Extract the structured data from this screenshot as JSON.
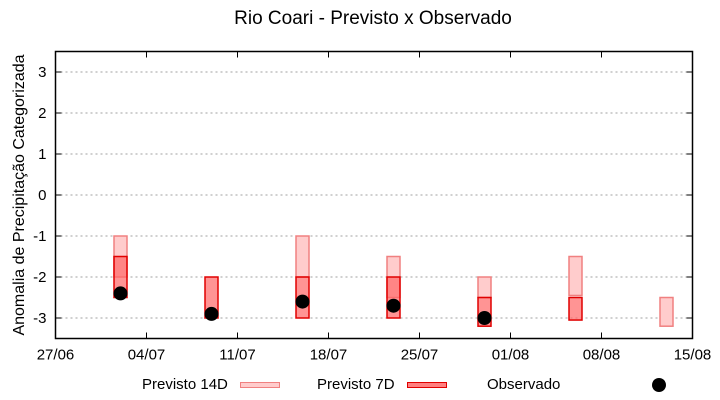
{
  "chart_data": {
    "type": "bar",
    "title": "Rio Coari - Previsto x Observado",
    "xlabel": "",
    "ylabel": "Anomalia de Precipitação Categorizada",
    "ylim": [
      -3.5,
      3.5
    ],
    "yticks": [
      3,
      2,
      1,
      0,
      -1,
      -2,
      -3
    ],
    "xticks": [
      "27/06",
      "04/07",
      "11/07",
      "18/07",
      "25/07",
      "01/08",
      "08/08",
      "15/08"
    ],
    "xrange_days": 49,
    "grid": true,
    "legend_position": "bottom",
    "colors": {
      "p14_fill": "#ffcccc",
      "p14_stroke": "#f08080",
      "p7_fill": "#ff6666",
      "p7_stroke": "#e00000",
      "obs": "#000000",
      "grid": "#a0a0a0"
    },
    "series": [
      {
        "name": "Previsto 14D",
        "type": "range-box",
        "points": [
          {
            "date": "02/07",
            "day": 5,
            "top": -1.0,
            "bottom": -2.0
          },
          {
            "date": "16/07",
            "day": 19,
            "top": -1.0,
            "bottom": -2.0
          },
          {
            "date": "23/07",
            "day": 26,
            "top": -1.5,
            "bottom": -2.5
          },
          {
            "date": "30/07",
            "day": 33,
            "top": -2.0,
            "bottom": -2.5
          },
          {
            "date": "06/08",
            "day": 40,
            "top": -1.5,
            "bottom": -2.45
          },
          {
            "date": "13/08",
            "day": 47,
            "top": -2.5,
            "bottom": -3.2
          }
        ]
      },
      {
        "name": "Previsto 7D",
        "type": "range-box",
        "points": [
          {
            "date": "02/07",
            "day": 5,
            "top": -1.5,
            "bottom": -2.5
          },
          {
            "date": "09/07",
            "day": 12,
            "top": -2.0,
            "bottom": -3.0
          },
          {
            "date": "16/07",
            "day": 19,
            "top": -2.0,
            "bottom": -3.0
          },
          {
            "date": "23/07",
            "day": 26,
            "top": -2.0,
            "bottom": -3.0
          },
          {
            "date": "30/07",
            "day": 33,
            "top": -2.5,
            "bottom": -3.2
          },
          {
            "date": "06/08",
            "day": 40,
            "top": -2.5,
            "bottom": -3.05
          }
        ]
      },
      {
        "name": "Observado",
        "type": "scatter",
        "points": [
          {
            "date": "02/07",
            "day": 5,
            "value": -2.4
          },
          {
            "date": "09/07",
            "day": 12,
            "value": -2.9
          },
          {
            "date": "16/07",
            "day": 19,
            "value": -2.6
          },
          {
            "date": "23/07",
            "day": 26,
            "value": -2.7
          },
          {
            "date": "30/07",
            "day": 33,
            "value": -3.0
          }
        ]
      }
    ]
  },
  "legend": {
    "p14_label": "Previsto 14D",
    "p7_label": "Previsto 7D",
    "obs_label": "Observado"
  }
}
